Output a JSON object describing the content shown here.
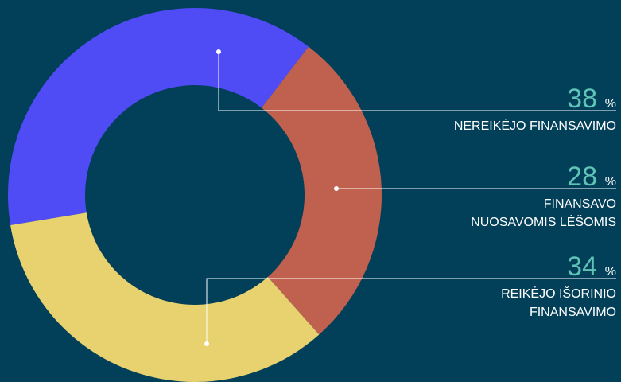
{
  "chart_data": {
    "type": "donut",
    "unit": "%",
    "categories": [
      [
        "NEREIKĖJO FINANSAVIMO"
      ],
      [
        "FINANSAVO",
        "NUOSAVOMIS LĖŠOMIS"
      ],
      [
        "REIKĖJO IŠORINIO",
        "FINANSAVIMO"
      ]
    ],
    "values": [
      38,
      28,
      34
    ],
    "colors": [
      "#4f4cf5",
      "#c0604f",
      "#e8d16f"
    ]
  }
}
